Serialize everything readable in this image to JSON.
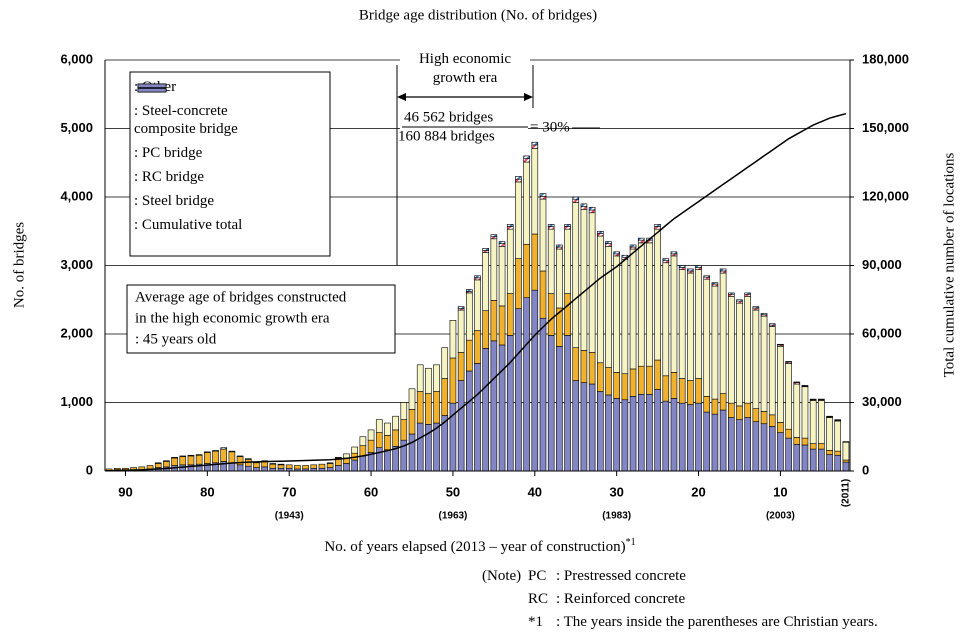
{
  "chart_data": {
    "type": "bar",
    "title": "Bridge age distribution (No. of bridges)",
    "ylabel": "No. of bridges",
    "y2label": "Total cumulative number of locations",
    "xlabel": "No. of years elapsed (2013 – year of construction)",
    "xlabel_note": "*1",
    "x": [
      92,
      91,
      90,
      89,
      88,
      87,
      86,
      85,
      84,
      83,
      82,
      81,
      80,
      79,
      78,
      77,
      76,
      75,
      74,
      73,
      72,
      71,
      70,
      69,
      68,
      67,
      66,
      65,
      64,
      63,
      62,
      61,
      60,
      59,
      58,
      57,
      56,
      55,
      54,
      53,
      52,
      51,
      50,
      49,
      48,
      47,
      46,
      45,
      44,
      43,
      42,
      41,
      40,
      39,
      38,
      37,
      36,
      35,
      34,
      33,
      32,
      31,
      30,
      29,
      28,
      27,
      26,
      25,
      24,
      23,
      22,
      21,
      20,
      19,
      18,
      17,
      16,
      15,
      14,
      13,
      12,
      11,
      10,
      9,
      8,
      7,
      6,
      5,
      4,
      3,
      2
    ],
    "xlim": [
      92.5,
      1.5
    ],
    "xticks": [
      90,
      80,
      70,
      60,
      50,
      40,
      30,
      20,
      10
    ],
    "x_year_labels": [
      {
        "value": 70,
        "label": "(1943)"
      },
      {
        "value": 50,
        "label": "(1963)"
      },
      {
        "value": 30,
        "label": "(1983)"
      },
      {
        "value": 10,
        "label": "(2003)"
      },
      {
        "value": 2,
        "label": "(2011)"
      }
    ],
    "ylim": [
      0,
      6000
    ],
    "yticks": [
      0,
      {
        "value": 1000,
        "label": "1,000"
      },
      {
        "value": 2000,
        "label": "2,000"
      },
      {
        "value": 3000,
        "label": "3,000"
      },
      {
        "value": 4000,
        "label": "4,000"
      },
      {
        "value": 5000,
        "label": "5,000"
      },
      {
        "value": 6000,
        "label": "6,000"
      }
    ],
    "y2lim": [
      0,
      180000
    ],
    "y2ticks": [
      0,
      {
        "value": 30000,
        "label": "30,000"
      },
      {
        "value": 60000,
        "label": "60,000"
      },
      {
        "value": 90000,
        "label": "90,000"
      },
      {
        "value": 120000,
        "label": "120,000"
      },
      {
        "value": 150000,
        "label": "150,000"
      },
      {
        "value": 180000,
        "label": "180,000"
      }
    ],
    "grid": true,
    "stacked": true,
    "series": [
      {
        "name": ": Steel bridge",
        "color": "#8386c4",
        "values": [
          10,
          20,
          20,
          20,
          20,
          30,
          50,
          60,
          80,
          90,
          90,
          100,
          110,
          120,
          140,
          120,
          90,
          70,
          50,
          60,
          40,
          40,
          40,
          30,
          30,
          40,
          40,
          50,
          80,
          110,
          160,
          220,
          270,
          340,
          310,
          360,
          450,
          540,
          700,
          680,
          700,
          810,
          990,
          1320,
          1460,
          1570,
          1790,
          1900,
          1840,
          1980,
          2370,
          2530,
          2640,
          2230,
          1980,
          1820,
          1980,
          1320,
          1290,
          1270,
          1160,
          1110,
          1060,
          1040,
          1090,
          1120,
          1120,
          1190,
          1020,
          1060,
          990,
          970,
          990,
          860,
          830,
          890,
          780,
          750,
          780,
          720,
          690,
          650,
          560,
          480,
          390,
          380,
          320,
          320,
          240,
          230,
          130
        ]
      },
      {
        "name": ": RC bridge",
        "color": "#f0b22e",
        "values": [
          20,
          20,
          20,
          30,
          40,
          50,
          60,
          80,
          110,
          120,
          130,
          130,
          160,
          170,
          180,
          160,
          120,
          100,
          70,
          80,
          60,
          50,
          50,
          50,
          50,
          50,
          60,
          60,
          110,
          80,
          100,
          150,
          180,
          220,
          210,
          240,
          300,
          360,
          460,
          450,
          460,
          540,
          660,
          410,
          450,
          480,
          550,
          590,
          570,
          610,
          730,
          780,
          820,
          690,
          610,
          560,
          610,
          480,
          470,
          460,
          420,
          400,
          380,
          380,
          400,
          410,
          410,
          430,
          370,
          380,
          360,
          350,
          360,
          230,
          220,
          240,
          210,
          200,
          210,
          190,
          180,
          170,
          150,
          130,
          100,
          100,
          80,
          80,
          60,
          60,
          30
        ]
      },
      {
        "name": ": PC bridge",
        "color": "#f7f4c4",
        "values": [
          0,
          0,
          0,
          0,
          0,
          0,
          0,
          0,
          0,
          0,
          0,
          0,
          0,
          0,
          0,
          0,
          0,
          0,
          0,
          0,
          0,
          0,
          0,
          0,
          0,
          0,
          0,
          0,
          0,
          60,
          90,
          130,
          150,
          190,
          180,
          200,
          250,
          300,
          390,
          370,
          390,
          450,
          550,
          620,
          690,
          740,
          850,
          900,
          870,
          940,
          1120,
          1200,
          1250,
          1050,
          940,
          860,
          940,
          2120,
          2060,
          2040,
          1850,
          1770,
          1700,
          1670,
          1750,
          1800,
          1800,
          1910,
          1650,
          1700,
          1590,
          1570,
          1590,
          1710,
          1650,
          1760,
          1560,
          1500,
          1560,
          1440,
          1390,
          1290,
          1110,
          960,
          780,
          750,
          630,
          630,
          480,
          440,
          260
        ]
      },
      {
        "name": ": Steel-concrete composite bridge",
        "color": "#e84a5f",
        "hatch": true,
        "values": [
          0,
          0,
          0,
          0,
          0,
          0,
          0,
          0,
          0,
          0,
          0,
          0,
          0,
          0,
          0,
          0,
          0,
          0,
          0,
          0,
          0,
          0,
          0,
          0,
          0,
          0,
          0,
          0,
          0,
          0,
          0,
          0,
          0,
          0,
          0,
          0,
          0,
          0,
          0,
          0,
          0,
          0,
          0,
          20,
          20,
          30,
          30,
          30,
          40,
          40,
          40,
          50,
          50,
          40,
          40,
          30,
          40,
          40,
          40,
          40,
          40,
          40,
          30,
          30,
          30,
          40,
          40,
          40,
          30,
          30,
          30,
          30,
          30,
          30,
          30,
          30,
          30,
          30,
          30,
          30,
          20,
          20,
          20,
          20,
          20,
          10,
          10,
          10,
          10,
          10,
          10
        ]
      },
      {
        "name": ": Other",
        "color": "#3f7fc4",
        "hatch": true,
        "values": [
          0,
          0,
          0,
          0,
          0,
          0,
          10,
          10,
          10,
          10,
          10,
          10,
          10,
          10,
          20,
          10,
          10,
          10,
          10,
          10,
          10,
          10,
          0,
          0,
          0,
          0,
          0,
          10,
          10,
          0,
          0,
          0,
          0,
          0,
          0,
          0,
          0,
          0,
          0,
          0,
          0,
          0,
          0,
          30,
          30,
          30,
          30,
          30,
          30,
          30,
          40,
          40,
          40,
          40,
          30,
          30,
          30,
          40,
          40,
          40,
          30,
          30,
          30,
          30,
          30,
          30,
          30,
          30,
          30,
          30,
          30,
          30,
          30,
          20,
          20,
          30,
          20,
          20,
          20,
          20,
          20,
          20,
          10,
          10,
          10,
          10,
          10,
          10,
          10,
          10,
          0
        ]
      },
      {
        "name": ": Cumulative total",
        "type": "line",
        "axis": "y2",
        "color": "#000000",
        "values": [
          100,
          200,
          300,
          400,
          500,
          700,
          900,
          1100,
          1400,
          1700,
          2000,
          2300,
          2600,
          2900,
          3200,
          3500,
          3700,
          3900,
          4000,
          4100,
          4200,
          4300,
          4400,
          4500,
          4600,
          4700,
          4800,
          4900,
          5200,
          5500,
          6000,
          6600,
          7300,
          8100,
          8900,
          9800,
          11000,
          12500,
          14500,
          16500,
          18800,
          21500,
          24500,
          27500,
          30500,
          33500,
          37000,
          40500,
          44000,
          47500,
          51500,
          55500,
          59500,
          63000,
          66500,
          69500,
          72500,
          75500,
          78500,
          81500,
          84500,
          87000,
          89500,
          92500,
          95500,
          98500,
          101500,
          104500,
          107500,
          110500,
          113000,
          115500,
          118000,
          120500,
          123000,
          125500,
          128000,
          130500,
          133000,
          135500,
          138000,
          140500,
          143000,
          145500,
          147500,
          149500,
          151500,
          153000,
          154500,
          155500,
          156500
        ]
      }
    ],
    "legend": "upper left",
    "annotations": {
      "era": "High economic growth era",
      "fraction_top": "46 562 bridges",
      "fraction_bottom": "160 884 bridges",
      "fraction_result": "= 30%",
      "average_box": [
        "Average age of bridges constructed",
        "in the high economic growth era",
        ": 45 years old"
      ]
    },
    "notes": {
      "label": "(Note)",
      "rows": [
        [
          "PC",
          ": Prestressed concrete"
        ],
        [
          "RC",
          ": Reinforced concrete"
        ],
        [
          "*1",
          ": The years inside the parentheses are Christian years."
        ]
      ]
    }
  }
}
